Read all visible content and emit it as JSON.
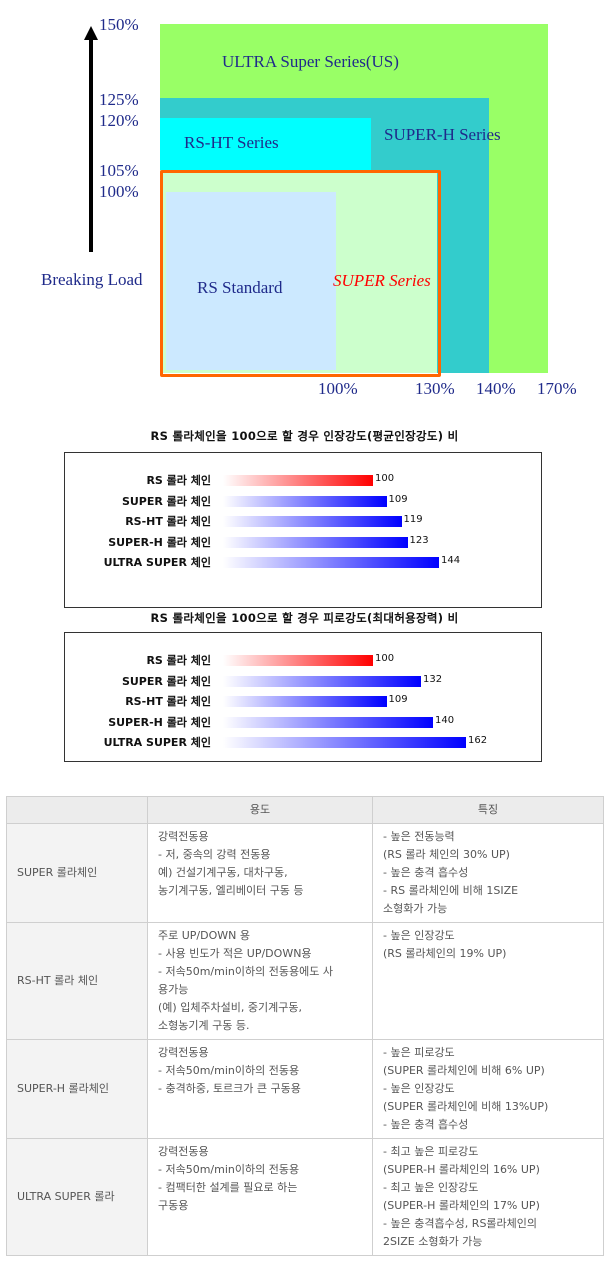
{
  "diagram": {
    "y_axis": {
      "labels": [
        "150%",
        "125%",
        "120%",
        "105%",
        "100%"
      ],
      "title": "Breaking Load"
    },
    "x_axis": {
      "labels": [
        "100%",
        "130%",
        "140%",
        "170%"
      ]
    },
    "series_labels": {
      "ultra": "ULTRA Super Series(US)",
      "superh": "SUPER-H Series",
      "rsht": "RS-HT Series",
      "rsstd": "RS Standard",
      "super": "SUPER Series"
    },
    "colors": {
      "ultra": "#99ff66",
      "superh": "#33cccc",
      "rsht": "#00ffff",
      "super_fill": "#ccffcc",
      "rsstd": "#cce9ff",
      "super_border": "#ff6600",
      "super_text": "#ff0000"
    }
  },
  "chart_data": [
    {
      "type": "bar",
      "title": "RS 롤라체인을 100으로 할 경우 인장강도(평균인장강도) 비",
      "categories": [
        "RS 롤라 체인",
        "SUPER 롤라 체인",
        "RS-HT 롤라 체인",
        "SUPER-H 롤라 체인",
        "ULTRA SUPER 체인"
      ],
      "values": [
        100,
        109,
        119,
        123,
        144
      ],
      "colors": [
        "red",
        "blue",
        "blue",
        "blue",
        "blue"
      ]
    },
    {
      "type": "bar",
      "title": "RS 롤라체인을 100으로 할 경우 피로강도(최대허용장력) 비",
      "categories": [
        "RS 롤라 체인",
        "SUPER 롤라 체인",
        "RS-HT 롤라 체인",
        "SUPER-H 롤라 체인",
        "ULTRA SUPER 체인"
      ],
      "values": [
        100,
        132,
        109,
        140,
        162
      ],
      "colors": [
        "red",
        "blue",
        "blue",
        "blue",
        "blue"
      ]
    }
  ],
  "table": {
    "headers": [
      "",
      "용도",
      "특징"
    ],
    "rows": [
      {
        "name": "SUPER 롤라체인",
        "usage": [
          "강력전동용",
          "- 저, 중속의 강력 전동용",
          "예) 건설기계구동, 대차구동,",
          "농기계구동, 엘리베이터 구동 등"
        ],
        "features": [
          "- 높은 전동능력",
          "(RS 롤라 체인의 30% UP)",
          "- 높은 충격 흡수성",
          "- RS 롤라체인에 비해 1SIZE",
          "소형화가 가능"
        ]
      },
      {
        "name": "RS-HT 롤라 체인",
        "usage": [
          "주로 UP/DOWN 용",
          "- 사용 빈도가 적은 UP/DOWN용",
          "- 저속50m/min이하의 전동용에도 사",
          "용가능",
          "(예) 입체주차설비, 중기계구동,",
          "소형농기계 구동 등."
        ],
        "features": [
          "- 높은 인장강도",
          "(RS 롤라체인의 19% UP)"
        ]
      },
      {
        "name": "SUPER-H 롤라체인",
        "usage": [
          "강력전동용",
          "- 저속50m/min이하의 전동용",
          "- 충격하중, 토르크가 큰 구동용"
        ],
        "features": [
          "- 높은 피로강도",
          "(SUPER 롤라체인에 비해 6% UP)",
          "- 높은 인장강도",
          "(SUPER 롤라체인에 비해 13%UP)",
          "- 높은 충격 흡수성"
        ]
      },
      {
        "name": "ULTRA SUPER 롤라",
        "usage": [
          "강력전동용",
          "- 저속50m/min이하의 전동용",
          "- 컴팩터한 설계를 필요로 하는",
          "구동용"
        ],
        "features": [
          "- 최고 높은 피로강도",
          "(SUPER-H 롤라체인의 16% UP)",
          "- 최고 높은 인장강도",
          "(SUPER-H 롤라체인의 17% UP)",
          "- 높은 충격흡수성, RS롤라체인의",
          "2SIZE 소형화가 가능"
        ]
      }
    ]
  }
}
